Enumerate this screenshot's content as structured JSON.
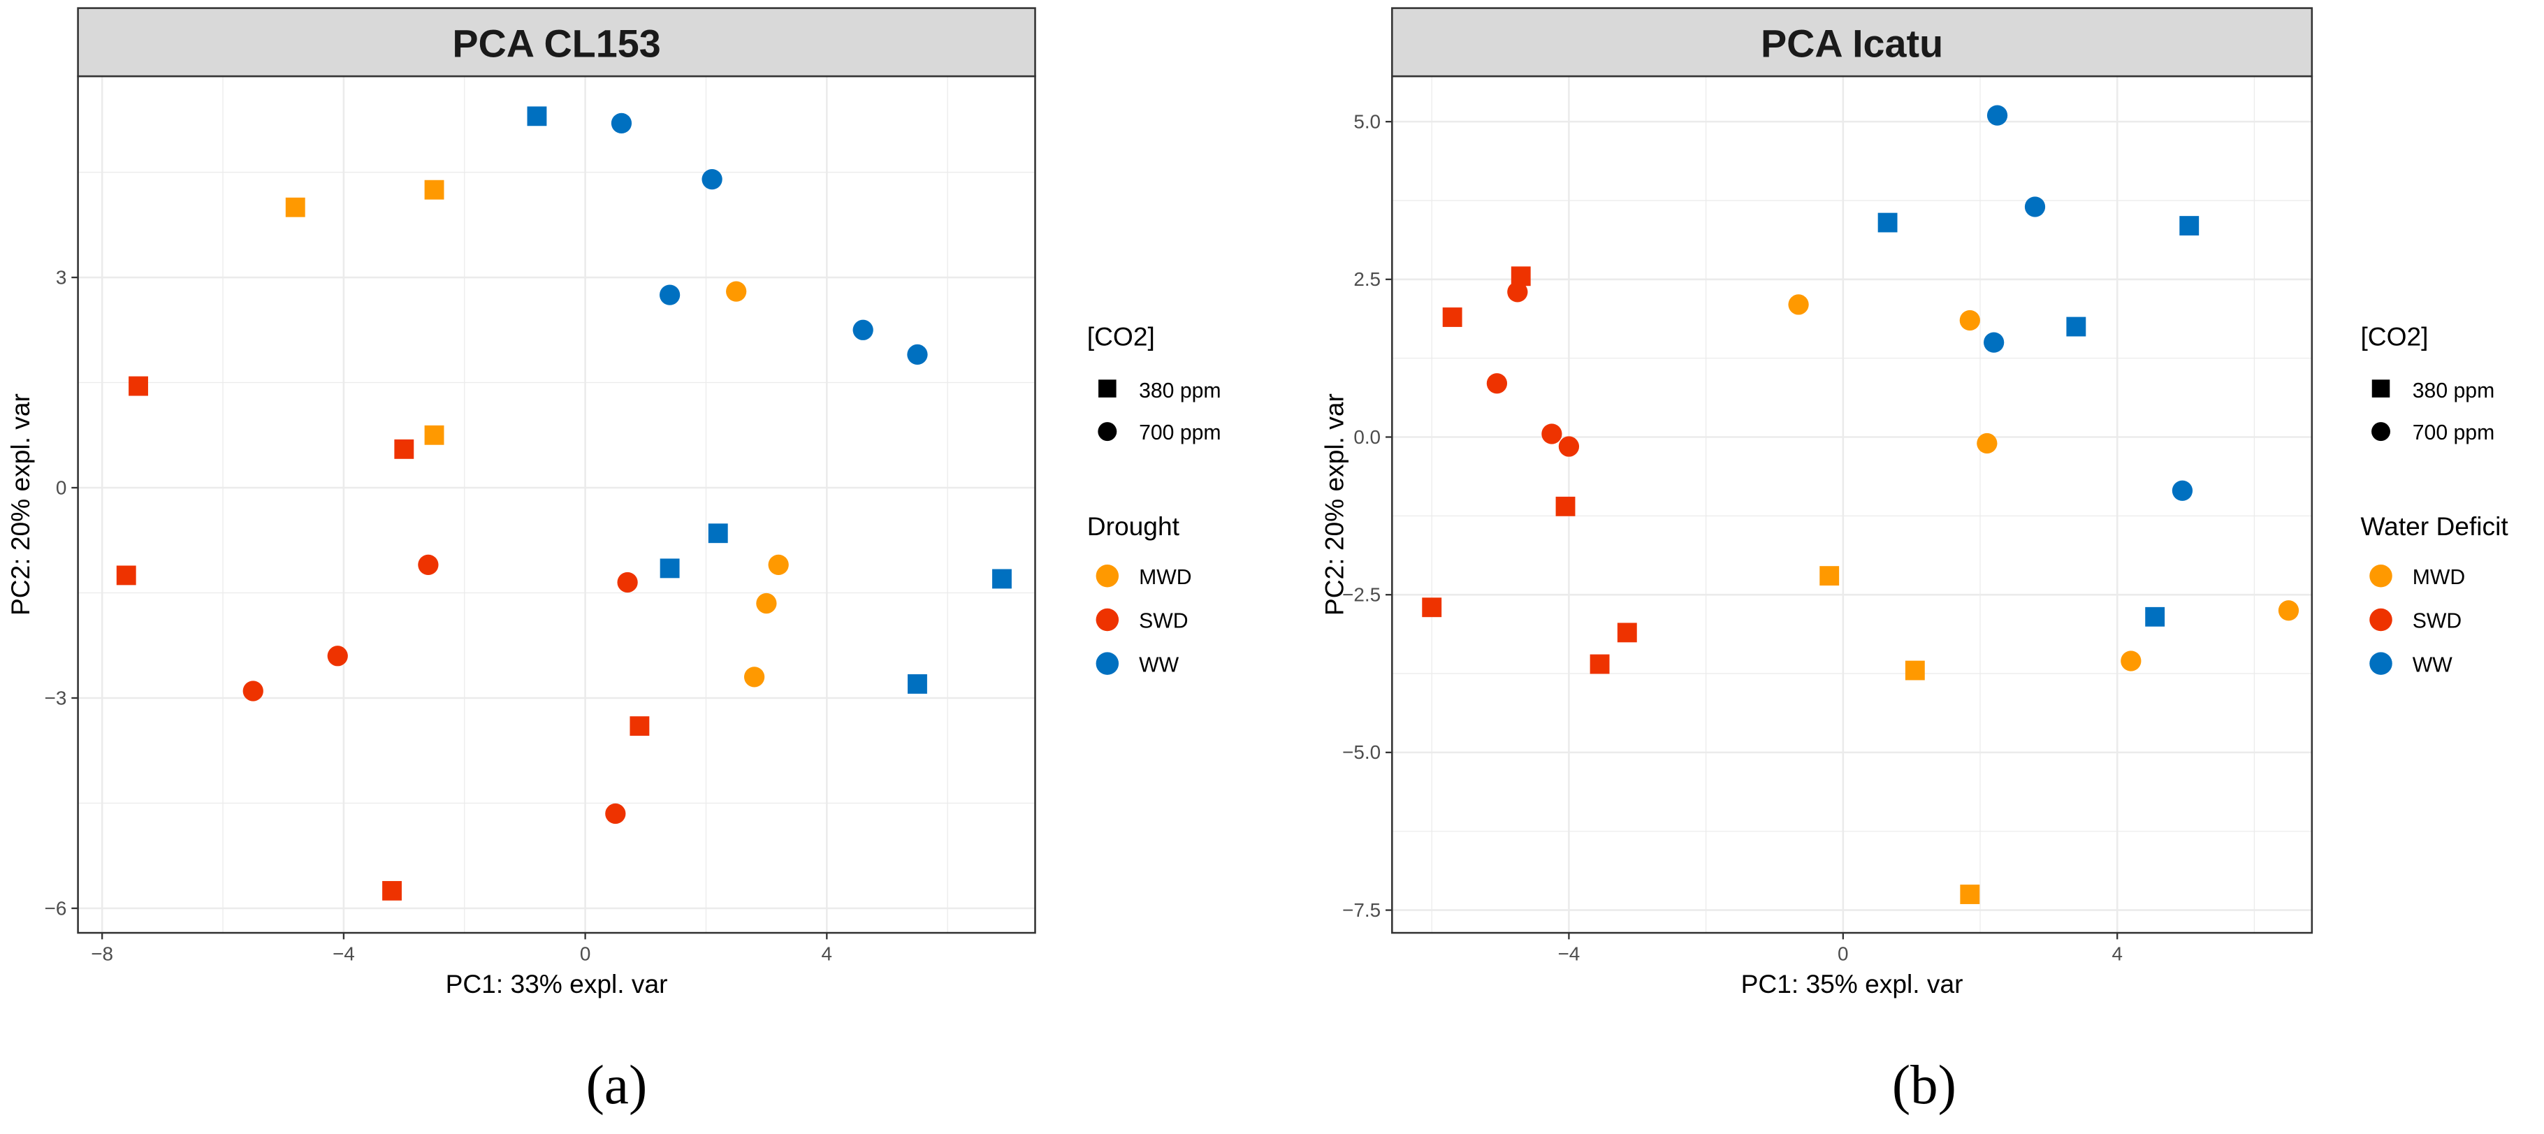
{
  "chart_data": [
    {
      "type": "scatter",
      "title": "PCA CL153",
      "panel_label": "(a)",
      "xlabel": "PC1: 33% expl. var",
      "ylabel": "PC2: 20% expl. var",
      "xlim": [
        -8.4,
        7.45
      ],
      "ylim": [
        -6.35,
        5.87
      ],
      "xticks": [
        -8,
        -4,
        0,
        4
      ],
      "xtick_labels": [
        "−8",
        "−4",
        "0",
        "4"
      ],
      "yticks": [
        3,
        0,
        -3,
        -6
      ],
      "ytick_labels": [
        "3",
        "0",
        "−3",
        "−6"
      ],
      "grid": true,
      "legend_placement": "right",
      "shape_legend": {
        "title": "[CO2]",
        "items": [
          {
            "label": "380 ppm",
            "shape": "square"
          },
          {
            "label": "700 ppm",
            "shape": "circle"
          }
        ]
      },
      "color_legend": {
        "title": "Drought",
        "items": [
          {
            "label": "MWD",
            "color": "#FF9900"
          },
          {
            "label": "SWD",
            "color": "#EE3300"
          },
          {
            "label": "WW",
            "color": "#0070C0"
          }
        ]
      },
      "points": [
        {
          "x": -0.8,
          "y": 5.3,
          "group": "WW",
          "co2": "380 ppm"
        },
        {
          "x": 2.2,
          "y": -0.65,
          "group": "WW",
          "co2": "380 ppm"
        },
        {
          "x": 1.4,
          "y": -1.15,
          "group": "WW",
          "co2": "380 ppm"
        },
        {
          "x": 6.9,
          "y": -1.3,
          "group": "WW",
          "co2": "380 ppm"
        },
        {
          "x": 5.5,
          "y": -2.8,
          "group": "WW",
          "co2": "380 ppm"
        },
        {
          "x": -4.8,
          "y": 4.0,
          "group": "MWD",
          "co2": "380 ppm"
        },
        {
          "x": -2.5,
          "y": 4.25,
          "group": "MWD",
          "co2": "380 ppm"
        },
        {
          "x": -2.5,
          "y": 0.75,
          "group": "MWD",
          "co2": "380 ppm"
        },
        {
          "x": -7.4,
          "y": 1.45,
          "group": "SWD",
          "co2": "380 ppm"
        },
        {
          "x": -3.0,
          "y": 0.55,
          "group": "SWD",
          "co2": "380 ppm"
        },
        {
          "x": -7.6,
          "y": -1.25,
          "group": "SWD",
          "co2": "380 ppm"
        },
        {
          "x": 0.9,
          "y": -3.4,
          "group": "SWD",
          "co2": "380 ppm"
        },
        {
          "x": -3.2,
          "y": -5.75,
          "group": "SWD",
          "co2": "380 ppm"
        },
        {
          "x": 0.6,
          "y": 5.2,
          "group": "WW",
          "co2": "700 ppm"
        },
        {
          "x": 2.1,
          "y": 4.4,
          "group": "WW",
          "co2": "700 ppm"
        },
        {
          "x": 1.4,
          "y": 2.75,
          "group": "WW",
          "co2": "700 ppm"
        },
        {
          "x": 4.6,
          "y": 2.25,
          "group": "WW",
          "co2": "700 ppm"
        },
        {
          "x": 5.5,
          "y": 1.9,
          "group": "WW",
          "co2": "700 ppm"
        },
        {
          "x": 2.5,
          "y": 2.8,
          "group": "MWD",
          "co2": "700 ppm"
        },
        {
          "x": 3.2,
          "y": -1.1,
          "group": "MWD",
          "co2": "700 ppm"
        },
        {
          "x": 3.0,
          "y": -1.65,
          "group": "MWD",
          "co2": "700 ppm"
        },
        {
          "x": 2.8,
          "y": -2.7,
          "group": "MWD",
          "co2": "700 ppm"
        },
        {
          "x": -2.6,
          "y": -1.1,
          "group": "SWD",
          "co2": "700 ppm"
        },
        {
          "x": 0.7,
          "y": -1.35,
          "group": "SWD",
          "co2": "700 ppm"
        },
        {
          "x": -4.1,
          "y": -2.4,
          "group": "SWD",
          "co2": "700 ppm"
        },
        {
          "x": -5.5,
          "y": -2.9,
          "group": "SWD",
          "co2": "700 ppm"
        },
        {
          "x": 0.5,
          "y": -4.65,
          "group": "SWD",
          "co2": "700 ppm"
        }
      ]
    },
    {
      "type": "scatter",
      "title": "PCA Icatu",
      "panel_label": "(b)",
      "xlabel": "PC1: 35% expl. var",
      "ylabel": "PC2: 20% expl. var",
      "xlim": [
        -6.58,
        6.84
      ],
      "ylim": [
        -7.86,
        5.72
      ],
      "xticks": [
        -4,
        0,
        4
      ],
      "xtick_labels": [
        "−4",
        "0",
        "4"
      ],
      "yticks": [
        5,
        2.5,
        0,
        -2.5,
        -5,
        -7.5
      ],
      "ytick_labels": [
        "5.0",
        "2.5",
        "0.0",
        "−2.5",
        "−5.0",
        "−7.5"
      ],
      "grid": true,
      "legend_placement": "right",
      "shape_legend": {
        "title": "[CO2]",
        "items": [
          {
            "label": "380 ppm",
            "shape": "square"
          },
          {
            "label": "700 ppm",
            "shape": "circle"
          }
        ]
      },
      "color_legend": {
        "title": "Water Deficit",
        "items": [
          {
            "label": "MWD",
            "color": "#FF9900"
          },
          {
            "label": "SWD",
            "color": "#EE3300"
          },
          {
            "label": "WW",
            "color": "#0070C0"
          }
        ]
      },
      "points": [
        {
          "x": 0.65,
          "y": 3.4,
          "group": "WW",
          "co2": "380 ppm"
        },
        {
          "x": 5.05,
          "y": 3.35,
          "group": "WW",
          "co2": "380 ppm"
        },
        {
          "x": 3.4,
          "y": 1.75,
          "group": "WW",
          "co2": "380 ppm"
        },
        {
          "x": 4.55,
          "y": -2.85,
          "group": "WW",
          "co2": "380 ppm"
        },
        {
          "x": -0.2,
          "y": -2.2,
          "group": "MWD",
          "co2": "380 ppm"
        },
        {
          "x": 1.05,
          "y": -3.7,
          "group": "MWD",
          "co2": "380 ppm"
        },
        {
          "x": 1.85,
          "y": -7.25,
          "group": "MWD",
          "co2": "380 ppm"
        },
        {
          "x": -4.7,
          "y": 2.55,
          "group": "SWD",
          "co2": "380 ppm"
        },
        {
          "x": -5.7,
          "y": 1.9,
          "group": "SWD",
          "co2": "380 ppm"
        },
        {
          "x": -4.05,
          "y": -1.1,
          "group": "SWD",
          "co2": "380 ppm"
        },
        {
          "x": -6.0,
          "y": -2.7,
          "group": "SWD",
          "co2": "380 ppm"
        },
        {
          "x": -3.15,
          "y": -3.1,
          "group": "SWD",
          "co2": "380 ppm"
        },
        {
          "x": -3.55,
          "y": -3.6,
          "group": "SWD",
          "co2": "380 ppm"
        },
        {
          "x": 2.25,
          "y": 5.1,
          "group": "WW",
          "co2": "700 ppm"
        },
        {
          "x": 2.8,
          "y": 3.65,
          "group": "WW",
          "co2": "700 ppm"
        },
        {
          "x": 2.2,
          "y": 1.5,
          "group": "WW",
          "co2": "700 ppm"
        },
        {
          "x": 4.95,
          "y": -0.85,
          "group": "WW",
          "co2": "700 ppm"
        },
        {
          "x": -0.65,
          "y": 2.1,
          "group": "MWD",
          "co2": "700 ppm"
        },
        {
          "x": 1.85,
          "y": 1.85,
          "group": "MWD",
          "co2": "700 ppm"
        },
        {
          "x": 2.1,
          "y": -0.1,
          "group": "MWD",
          "co2": "700 ppm"
        },
        {
          "x": 4.2,
          "y": -3.55,
          "group": "MWD",
          "co2": "700 ppm"
        },
        {
          "x": 6.5,
          "y": -2.75,
          "group": "MWD",
          "co2": "700 ppm"
        },
        {
          "x": -4.75,
          "y": 2.3,
          "group": "SWD",
          "co2": "700 ppm"
        },
        {
          "x": -5.05,
          "y": 0.85,
          "group": "SWD",
          "co2": "700 ppm"
        },
        {
          "x": -4.25,
          "y": 0.05,
          "group": "SWD",
          "co2": "700 ppm"
        },
        {
          "x": -4.0,
          "y": -0.15,
          "group": "SWD",
          "co2": "700 ppm"
        }
      ]
    }
  ]
}
